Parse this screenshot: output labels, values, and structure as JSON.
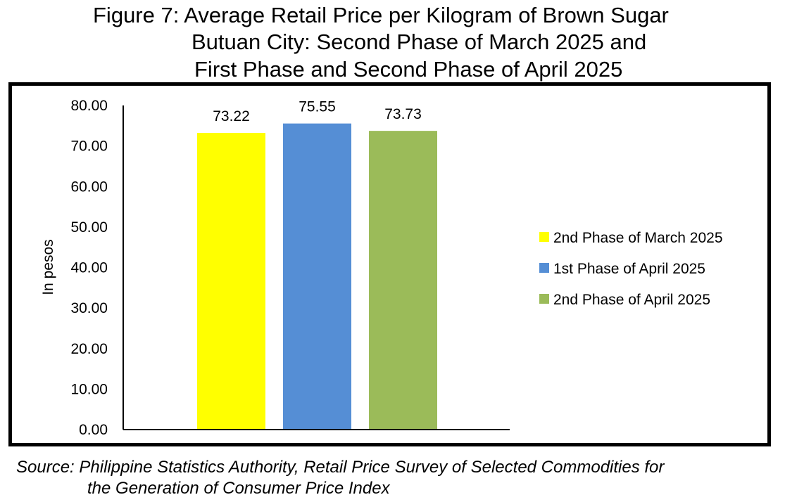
{
  "title_lines": [
    "Figure 7: Average Retail Price per Kilogram of Brown Sugar",
    "Butuan City: Second Phase of March 2025 and",
    "First Phase and Second Phase of April 2025"
  ],
  "source_lines": [
    "Source: Philippine Statistics Authority, Retail Price Survey of Selected Commodities for",
    "the Generation of Consumer Price Index"
  ],
  "chart_data": {
    "type": "bar",
    "title": "Figure 7: Average Retail Price per Kilogram of Brown Sugar Butuan City: Second Phase of March 2025 and First Phase and Second Phase of April 2025",
    "xlabel": "",
    "ylabel": "In pesos",
    "ylim": [
      0,
      80
    ],
    "yticks": [
      "0.00",
      "10.00",
      "20.00",
      "30.00",
      "40.00",
      "50.00",
      "60.00",
      "70.00",
      "80.00"
    ],
    "grid": false,
    "legend_position": "right",
    "series": [
      {
        "name": "2nd Phase of March 2025",
        "value": 73.22,
        "label": "73.22",
        "color": "#FFFF00"
      },
      {
        "name": "1st Phase of April 2025",
        "value": 75.55,
        "label": "75.55",
        "color": "#558ED5"
      },
      {
        "name": "2nd Phase of April 2025",
        "value": 73.73,
        "label": "73.73",
        "color": "#9BBB59"
      }
    ]
  }
}
